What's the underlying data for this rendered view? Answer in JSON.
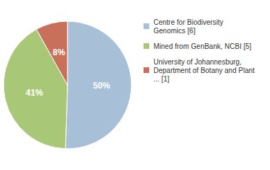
{
  "chart_data": {
    "type": "pie",
    "categories": [
      "Centre for Biodiversity\nGenomics [6]",
      "Mined from GenBank, NCBI [5]",
      "University of Johannesburg,\nDepartment of Botany and Plant\n... [1]"
    ],
    "values": [
      50,
      41,
      8
    ],
    "value_labels": [
      "50%",
      "41%",
      "8%"
    ],
    "colors": [
      "#a8bfd8",
      "#a8c878",
      "#c8705a"
    ],
    "data_labels": true,
    "legend": "right"
  }
}
